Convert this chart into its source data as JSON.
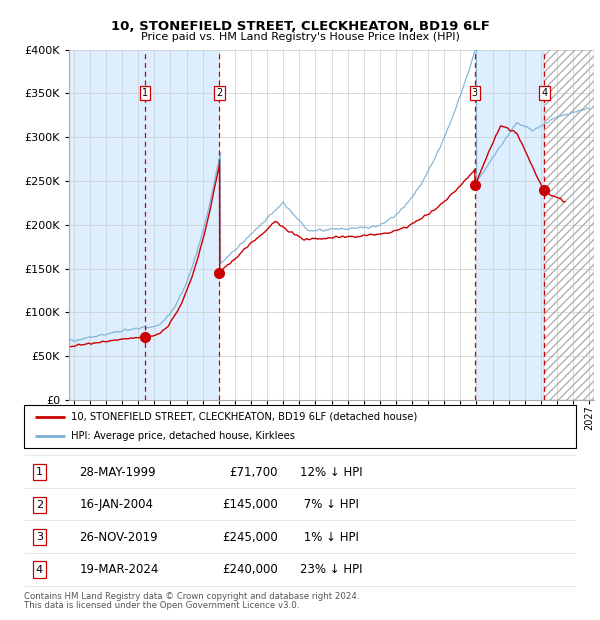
{
  "title": "10, STONEFIELD STREET, CLECKHEATON, BD19 6LF",
  "subtitle": "Price paid vs. HM Land Registry's House Price Index (HPI)",
  "legend_line1": "10, STONEFIELD STREET, CLECKHEATON, BD19 6LF (detached house)",
  "legend_line2": "HPI: Average price, detached house, Kirklees",
  "footer1": "Contains HM Land Registry data © Crown copyright and database right 2024.",
  "footer2": "This data is licensed under the Open Government Licence v3.0.",
  "sales": [
    {
      "num": 1,
      "date": "1999-05-28",
      "price": 71700,
      "label": "28-MAY-1999",
      "pct": "12% ↓ HPI"
    },
    {
      "num": 2,
      "date": "2004-01-16",
      "price": 145000,
      "label": "16-JAN-2004",
      "pct": "7% ↓ HPI"
    },
    {
      "num": 3,
      "date": "2019-11-26",
      "price": 245000,
      "label": "26-NOV-2019",
      "pct": "1% ↓ HPI"
    },
    {
      "num": 4,
      "date": "2024-03-19",
      "price": 240000,
      "label": "19-MAR-2024",
      "pct": "23% ↓ HPI"
    }
  ],
  "hpi_color": "#7ab0d4",
  "price_color": "#cc0000",
  "sale_dot_color": "#cc0000",
  "vline_color": "#cc0000",
  "shade_color": "#ddeeff",
  "grid_color": "#cccccc",
  "ylim": [
    0,
    400000
  ],
  "yticks": [
    0,
    50000,
    100000,
    150000,
    200000,
    250000,
    300000,
    350000,
    400000
  ],
  "xstart": 1994.7,
  "xend": 2027.3,
  "xticks": [
    1995,
    1996,
    1997,
    1998,
    1999,
    2000,
    2001,
    2002,
    2003,
    2004,
    2005,
    2006,
    2007,
    2008,
    2009,
    2010,
    2011,
    2012,
    2013,
    2014,
    2015,
    2016,
    2017,
    2018,
    2019,
    2020,
    2021,
    2022,
    2023,
    2024,
    2025,
    2026,
    2027
  ],
  "table_rows": [
    [
      1,
      "28-MAY-1999",
      "£71,700",
      "12% ↓ HPI"
    ],
    [
      2,
      "16-JAN-2004",
      "£145,000",
      " 7% ↓ HPI"
    ],
    [
      3,
      "26-NOV-2019",
      "£245,000",
      " 1% ↓ HPI"
    ],
    [
      4,
      "19-MAR-2024",
      "£240,000",
      "23% ↓ HPI"
    ]
  ]
}
